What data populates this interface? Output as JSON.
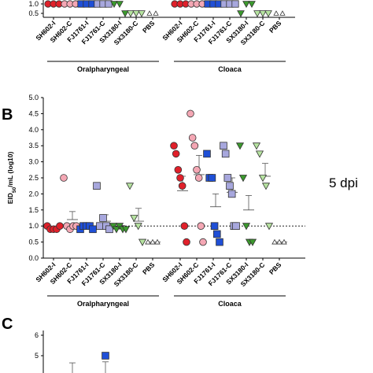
{
  "panels": {
    "b_letter": "B",
    "c_letter": "C",
    "dpi_label": "5 dpi"
  },
  "chart_data": [
    {
      "type": "scatter",
      "panel": "A",
      "note": "partially visible panel (cropped at top)",
      "categories": [
        "SH602-I",
        "SH602-C",
        "FJ1761-I",
        "FJ1761-C",
        "SX3180-I",
        "SX3180-C",
        "PBS",
        "SH602-I",
        "SH602-C",
        "FJ1761-I",
        "FJ1761-C",
        "SX3180-I",
        "SX3180-C",
        "PBS"
      ],
      "groups": [
        {
          "label": "Oralpharyngeal",
          "from": 0,
          "to": 6
        },
        {
          "label": "Cloaca",
          "from": 7,
          "to": 13
        }
      ],
      "yticks": [
        "1.0",
        "0.5"
      ],
      "ylim": [
        0.4,
        1.1
      ],
      "points_per_category": [
        [
          1.0,
          1.0,
          1.0
        ],
        [
          1.0,
          1.0,
          1.0
        ],
        [
          1.0,
          1.0,
          1.0
        ],
        [
          1.0,
          1.0,
          1.0
        ],
        [
          1.0,
          1.0,
          0.5
        ],
        [
          0.5,
          0.5,
          0.5
        ],
        [
          0.5,
          0.5
        ],
        [
          1.0,
          1.0,
          1.0
        ],
        [
          1.0,
          1.0,
          1.0
        ],
        [
          1.0,
          1.0,
          1.0
        ],
        [
          1.0,
          1.0,
          1.0
        ],
        [
          0.5,
          1.0,
          1.0
        ],
        [
          0.5,
          0.5,
          0.5
        ],
        [
          0.5,
          0.5
        ]
      ]
    },
    {
      "type": "scatter",
      "panel": "B",
      "ylabel_main": "EID",
      "ylabel_sub": "50",
      "ylabel_rest": "/mL (log10)",
      "ylim": [
        0.0,
        5.0
      ],
      "yticks": [
        "0.0",
        "0.5",
        "1.0",
        "1.5",
        "2.0",
        "2.5",
        "3.0",
        "3.5",
        "4.0",
        "4.5",
        "5.0"
      ],
      "detection_limit": 1.0,
      "categories": [
        "SH602-I",
        "SH602-C",
        "FJ1761-I",
        "FJ1761-C",
        "SX3180-I",
        "SX3180-C",
        "PBS",
        "SH602-I",
        "SH602-C",
        "FJ1761-I",
        "FJ1761-C",
        "SX3180-I",
        "SX3180-C",
        "PBS"
      ],
      "groups": [
        {
          "label": "Oralpharyngeal",
          "from": 0,
          "to": 6
        },
        {
          "label": "Cloaca",
          "from": 7,
          "to": 13
        }
      ],
      "points_per_category": [
        [
          1.0,
          0.9,
          0.9,
          0.9,
          1.0
        ],
        [
          2.5,
          1.0,
          0.9,
          1.0,
          1.0
        ],
        [
          0.9,
          1.0,
          1.0,
          1.0,
          0.9
        ],
        [
          2.25,
          1.0,
          1.25,
          1.0,
          0.9
        ],
        [
          1.0,
          0.9,
          1.0,
          0.9,
          0.9
        ],
        [
          2.25,
          1.25,
          1.0,
          0.5
        ],
        [
          0.5,
          0.5,
          0.5
        ],
        [
          3.5,
          3.25,
          2.75,
          2.5,
          2.25,
          1.0,
          0.5
        ],
        [
          4.5,
          3.75,
          3.5,
          2.75,
          2.5,
          1.0,
          0.5
        ],
        [
          3.25,
          2.5,
          2.5,
          1.0,
          0.75,
          0.5
        ],
        [
          3.5,
          3.25,
          2.5,
          2.25,
          2.0,
          1.0,
          1.0
        ],
        [
          3.5,
          2.5,
          1.0,
          0.5,
          0.5
        ],
        [
          3.5,
          3.25,
          2.5,
          2.25,
          1.0
        ],
        [
          0.5,
          0.5,
          0.5
        ]
      ],
      "means": [
        0.95,
        1.2,
        0.98,
        1.15,
        0.97,
        1.15,
        0.5,
        2.1,
        2.6,
        1.6,
        2.05,
        1.5,
        2.55,
        0.5
      ],
      "errors": [
        0.05,
        0.25,
        0.05,
        0.2,
        0.05,
        0.4,
        0.0,
        0.45,
        0.6,
        0.4,
        0.45,
        0.45,
        0.4,
        0.0
      ]
    },
    {
      "type": "scatter",
      "panel": "C",
      "note": "partially visible panel (cropped at bottom)",
      "yticks": [
        "6",
        "5"
      ],
      "points": [
        {
          "category_index": 3,
          "y": 5.0
        }
      ],
      "error_bars": [
        {
          "category_index": 1,
          "top": 4.65
        },
        {
          "category_index": 3,
          "top": 4.7
        }
      ]
    }
  ],
  "colors": {
    "SH602-I": "#e0202a",
    "SH602-C": "#f4a7b4",
    "FJ1761-I": "#1f4fd6",
    "FJ1761-C": "#a7a7dd",
    "SX3180-I": "#3c9a2e",
    "SX3180-C": "#b6e3a0",
    "PBS": "#ffffff",
    "stroke": "#333333"
  }
}
